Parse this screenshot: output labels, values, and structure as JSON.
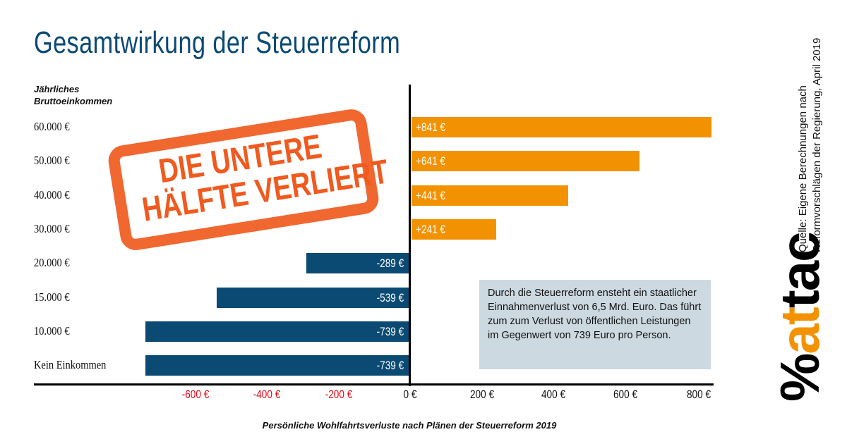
{
  "header": {
    "title": "Gesamtwirkung der Steuerreform"
  },
  "chart_data": {
    "type": "bar",
    "orientation": "horizontal",
    "title": "Gesamtwirkung der Steuerreform",
    "ylabel": "Jährliches Bruttoeinkommen",
    "xlabel": "Persönliche Wohlfahrtsverluste nach Plänen der Steuerreform 2019",
    "categories": [
      "60.000 €",
      "50.000 €",
      "40.000 €",
      "30.000 €",
      "20.000 €",
      "15.000 €",
      "10.000 €",
      "Kein Einkommen"
    ],
    "values": [
      841,
      641,
      441,
      241,
      -289,
      -539,
      -739,
      -739
    ],
    "value_labels": [
      "+841 €",
      "+641 €",
      "+441 €",
      "+241 €",
      "-289 €",
      "-539 €",
      "-739 €",
      "-739 €"
    ],
    "xlim": [
      -800,
      850
    ],
    "x_ticks": [
      -600,
      -400,
      -200,
      0,
      200,
      400,
      600,
      800
    ],
    "x_tick_labels": [
      "-600 €",
      "-400 €",
      "-200 €",
      "0 €",
      "200 €",
      "400 €",
      "600 €",
      "800 €"
    ],
    "colors": {
      "positive": "#f39200",
      "negative": "#0b4a73",
      "negative_tick": "#e30613",
      "positive_tick": "#111111"
    },
    "grid": false
  },
  "ylabel_head": {
    "line1": "Jährliches",
    "line2": "Bruttoeinkommen"
  },
  "stamp": {
    "line1": "DIE UNTERE",
    "line2": "HÄLFTE VERLIERT",
    "color": "#f05a1e"
  },
  "info_box": {
    "text": "Durch die Steuerreform ensteht ein staatlicher Einnahmenverlust von 6,5 Mrd. Euro. Das führt zum zum Verlust von öffentlichen Leistungen im Gegenwert von 739 Euro pro Person."
  },
  "source": {
    "line1": "Quelle: Eigene Berechnungen nach",
    "line2": "Reformvorschlägen der Regierung, April 2019"
  },
  "logo": {
    "prefix": "%",
    "part1": "at",
    "part2": "tac",
    "accent": "#f39200"
  }
}
